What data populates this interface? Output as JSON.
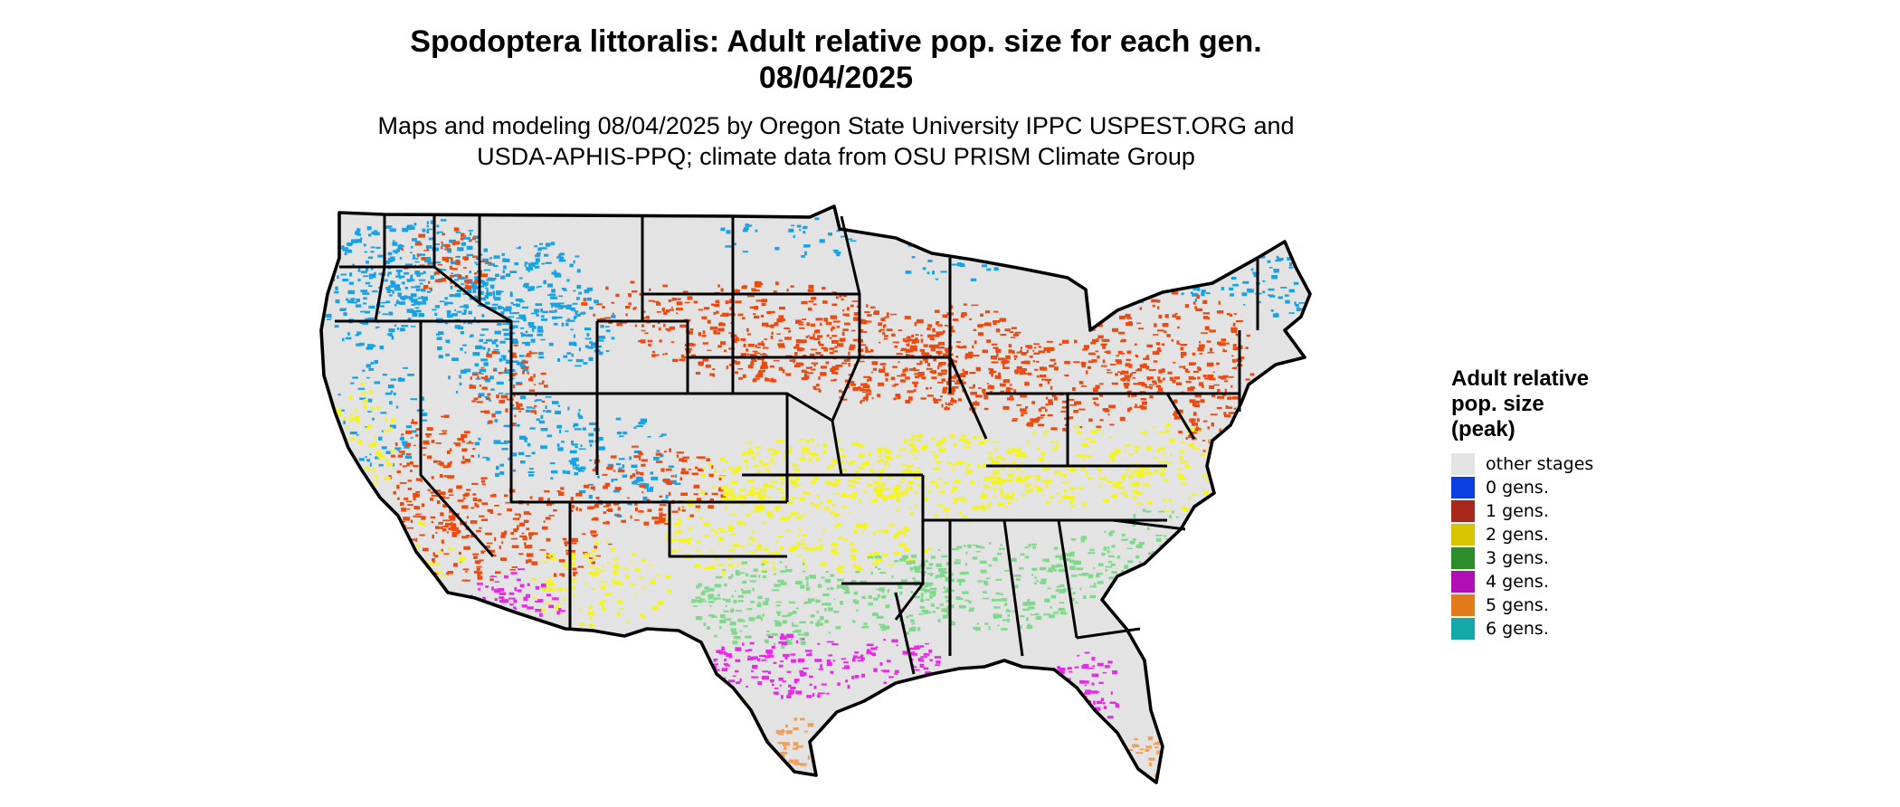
{
  "header": {
    "title_line1": "Spodoptera littoralis: Adult relative pop. size for each gen.",
    "title_line2": "08/04/2025",
    "subtitle_line1": "Maps and modeling 08/04/2025 by Oregon State University IPPC USPEST.ORG and",
    "subtitle_line2": "USDA-APHIS-PPQ; climate data from OSU PRISM Climate Group"
  },
  "legend": {
    "title_lines": [
      "Adult relative",
      "pop. size",
      "(peak)"
    ],
    "items": [
      {
        "label": "other stages",
        "color": "#e3e3e3"
      },
      {
        "label": "0 gens.",
        "color": "#0b3fe0"
      },
      {
        "label": "1 gens.",
        "color": "#a8291b"
      },
      {
        "label": "2 gens.",
        "color": "#d9c400"
      },
      {
        "label": "3 gens.",
        "color": "#2c8c29"
      },
      {
        "label": "4 gens.",
        "color": "#b00fb6"
      },
      {
        "label": "5 gens.",
        "color": "#e07a1b"
      },
      {
        "label": "6 gens.",
        "color": "#14a8a6"
      }
    ]
  },
  "map": {
    "zone_colors": {
      "0 gens.": "#18a2e6",
      "1 gens.": "#ee4a10",
      "2 gens.": "#f5f51a",
      "3 gens.": "#7fd98a",
      "4 gens.": "#ea28ea",
      "5 gens.": "#f0a05a",
      "other stages": "#e3e3e3"
    },
    "state_border_color": "#000000"
  }
}
